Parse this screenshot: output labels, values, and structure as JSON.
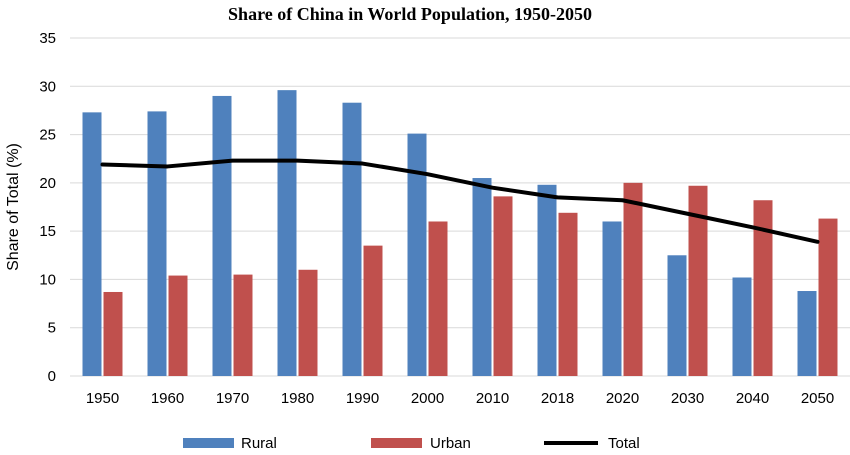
{
  "chart_data": {
    "type": "bar",
    "title": "Share of China in World Population, 1950-2050",
    "xlabel": "",
    "ylabel": "Share of Total (%)",
    "ylim": [
      0,
      35
    ],
    "yticks": [
      0,
      5,
      10,
      15,
      20,
      25,
      30,
      35
    ],
    "grid": true,
    "legend_position": "bottom",
    "categories": [
      "1950",
      "1960",
      "1970",
      "1980",
      "1990",
      "2000",
      "2010",
      "2018",
      "2020",
      "2030",
      "2040",
      "2050"
    ],
    "series": [
      {
        "name": "Rural",
        "kind": "bar",
        "color": "#4f81bd",
        "values": [
          27.3,
          27.4,
          29.0,
          29.6,
          28.3,
          25.1,
          20.5,
          19.8,
          16.0,
          12.5,
          10.2,
          8.8
        ]
      },
      {
        "name": "Urban",
        "kind": "bar",
        "color": "#c0504d",
        "values": [
          8.7,
          10.4,
          10.5,
          11.0,
          13.5,
          16.0,
          18.6,
          16.9,
          20.0,
          19.7,
          18.2,
          16.3
        ]
      },
      {
        "name": "Total",
        "kind": "line",
        "color": "#000000",
        "values": [
          21.9,
          21.7,
          22.3,
          22.3,
          22.0,
          20.9,
          19.5,
          18.5,
          18.2,
          16.8,
          15.4,
          13.9
        ]
      }
    ]
  }
}
